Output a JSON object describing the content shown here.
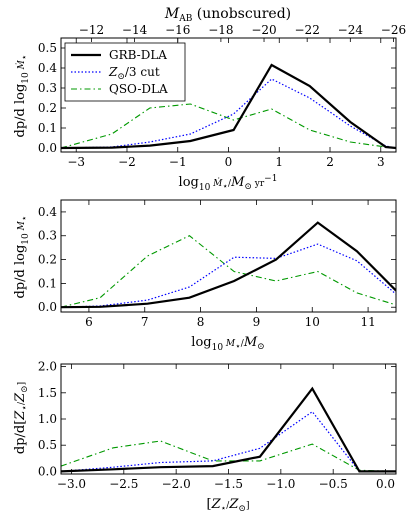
{
  "chart_data": [
    {
      "type": "line",
      "top_axis": {
        "label_main": "M",
        "label_sub": "AB",
        "label_rest": " (unobscured)",
        "ticks": [
          -12,
          -14,
          -16,
          -18,
          -20,
          -22,
          -24,
          -26
        ],
        "tick_labels": [
          "−12",
          "−14",
          "−16",
          "−18",
          "−20",
          "−22",
          "−24",
          "−26"
        ],
        "ticks_at_x": [
          -2.7,
          -1.85,
          -1.0,
          -0.15,
          0.7,
          1.55,
          2.4,
          3.25
        ]
      },
      "xlabel": "log10 M˙⋆/M⊙ yr−1",
      "ylabel": "dp/d log10 M˙⋆",
      "xlim": [
        -3.3,
        3.3
      ],
      "ylim": [
        -0.02,
        0.55
      ],
      "xticks": [
        -3,
        -2,
        -1,
        0,
        1,
        2,
        3
      ],
      "xtick_labels": [
        "−3",
        "−2",
        "−1",
        "0",
        "1",
        "2",
        "3"
      ],
      "yticks": [
        0.0,
        0.1,
        0.2,
        0.3,
        0.4,
        0.5
      ],
      "ytick_labels": [
        "0.0",
        "0.1",
        "0.2",
        "0.3",
        "0.4",
        "0.5"
      ],
      "legend": {
        "position": "top-left",
        "entries": [
          "GRB-DLA",
          "Z⊙/3 cut",
          "QSO-DLA"
        ]
      },
      "series": [
        {
          "name": "GRB-DLA",
          "color": "#000000",
          "x": [
            -3.3,
            -2.3,
            -1.55,
            -0.75,
            0.1,
            0.85,
            1.6,
            2.4,
            3.1,
            3.3
          ],
          "y": [
            0.0,
            0.002,
            0.012,
            0.035,
            0.09,
            0.415,
            0.31,
            0.13,
            0.005,
            0.0
          ]
        },
        {
          "name": "Z⊙/3 cut",
          "color": "#0000ff",
          "x": [
            -3.3,
            -2.3,
            -1.55,
            -0.75,
            0.1,
            0.85,
            1.6,
            2.4,
            3.1,
            3.3
          ],
          "y": [
            0.0,
            0.005,
            0.03,
            0.07,
            0.17,
            0.345,
            0.25,
            0.11,
            0.01,
            0.0
          ]
        },
        {
          "name": "QSO-DLA",
          "color": "#009900",
          "x": [
            -3.3,
            -2.3,
            -1.55,
            -0.75,
            0.1,
            0.85,
            1.6,
            2.4,
            3.1,
            3.3
          ],
          "y": [
            0.0,
            0.07,
            0.2,
            0.22,
            0.14,
            0.195,
            0.09,
            0.03,
            0.005,
            0.0
          ]
        }
      ]
    },
    {
      "type": "line",
      "xlabel": "log10 M⋆/M⊙",
      "ylabel": "dp/d log10 M⋆",
      "xlim": [
        5.5,
        11.5
      ],
      "ylim": [
        -0.02,
        0.45
      ],
      "xticks": [
        6,
        7,
        8,
        9,
        10,
        11
      ],
      "xtick_labels": [
        "6",
        "7",
        "8",
        "9",
        "10",
        "11"
      ],
      "yticks": [
        0.0,
        0.1,
        0.2,
        0.3,
        0.4
      ],
      "ytick_labels": [
        "0.0",
        "0.1",
        "0.2",
        "0.3",
        "0.4"
      ],
      "series": [
        {
          "name": "GRB-DLA",
          "color": "#000000",
          "x": [
            5.5,
            6.2,
            7.05,
            7.8,
            8.6,
            9.35,
            10.1,
            10.8,
            11.5
          ],
          "y": [
            0.0,
            0.002,
            0.015,
            0.04,
            0.11,
            0.2,
            0.355,
            0.235,
            0.07
          ]
        },
        {
          "name": "Z⊙/3 cut",
          "color": "#0000ff",
          "x": [
            5.5,
            6.2,
            7.05,
            7.8,
            8.6,
            9.35,
            10.1,
            10.8,
            11.5
          ],
          "y": [
            0.0,
            0.005,
            0.03,
            0.085,
            0.21,
            0.205,
            0.265,
            0.195,
            0.055
          ]
        },
        {
          "name": "QSO-DLA",
          "color": "#009900",
          "x": [
            5.5,
            6.2,
            7.05,
            7.8,
            8.6,
            9.35,
            10.1,
            10.8,
            11.5
          ],
          "y": [
            0.0,
            0.04,
            0.215,
            0.3,
            0.15,
            0.11,
            0.15,
            0.06,
            0.01
          ]
        }
      ]
    },
    {
      "type": "line",
      "xlabel": "[Z⋆/Z⊙]",
      "ylabel": "dp/d[Z⋆/Z⊙]",
      "xlim": [
        -3.1,
        0.1
      ],
      "ylim": [
        -0.05,
        2.05
      ],
      "xticks": [
        -3.0,
        -2.5,
        -2.0,
        -1.5,
        -1.0,
        -0.5,
        0.0
      ],
      "xtick_labels": [
        "−3.0",
        "−2.5",
        "−2.0",
        "−1.5",
        "−1.0",
        "−0.5",
        "0.0"
      ],
      "yticks": [
        0.0,
        0.5,
        1.0,
        1.5,
        2.0
      ],
      "ytick_labels": [
        "0.0",
        "0.5",
        "1.0",
        "1.5",
        "2.0"
      ],
      "series": [
        {
          "name": "GRB-DLA",
          "color": "#000000",
          "x": [
            -3.1,
            -2.6,
            -2.15,
            -1.65,
            -1.2,
            -0.7,
            -0.25,
            0.1
          ],
          "y": [
            0.0,
            0.04,
            0.08,
            0.1,
            0.28,
            1.58,
            0.0,
            0.0
          ]
        },
        {
          "name": "Z⊙/3 cut",
          "color": "#0000ff",
          "x": [
            -3.1,
            -2.6,
            -2.15,
            -1.65,
            -1.2,
            -0.7,
            -0.25,
            0.1
          ],
          "y": [
            0.0,
            0.08,
            0.17,
            0.2,
            0.44,
            1.14,
            0.0,
            0.0
          ]
        },
        {
          "name": "QSO-DLA",
          "color": "#009900",
          "x": [
            -3.1,
            -2.6,
            -2.15,
            -1.65,
            -1.2,
            -0.7,
            -0.25,
            0.1
          ],
          "y": [
            0.1,
            0.45,
            0.58,
            0.2,
            0.2,
            0.52,
            0.02,
            0.0
          ]
        }
      ]
    }
  ]
}
